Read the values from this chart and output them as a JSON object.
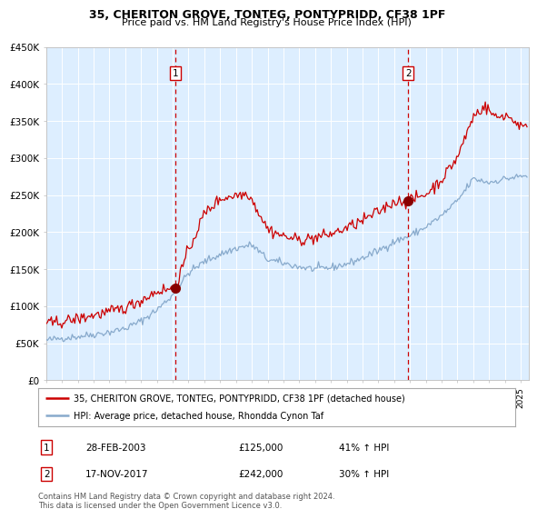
{
  "title": "35, CHERITON GROVE, TONTEG, PONTYPRIDD, CF38 1PF",
  "subtitle": "Price paid vs. HM Land Registry's House Price Index (HPI)",
  "ylim": [
    0,
    450000
  ],
  "yticks": [
    0,
    50000,
    100000,
    150000,
    200000,
    250000,
    300000,
    350000,
    400000,
    450000
  ],
  "ytick_labels": [
    "£0",
    "£50K",
    "£100K",
    "£150K",
    "£200K",
    "£250K",
    "£300K",
    "£350K",
    "£400K",
    "£450K"
  ],
  "xlim_start": 1995.0,
  "xlim_end": 2025.5,
  "plot_bg_color": "#ddeeff",
  "outer_bg_color": "#ffffff",
  "red_line_color": "#cc0000",
  "blue_line_color": "#88aacc",
  "marker_color": "#880000",
  "vline_color": "#cc0000",
  "transaction1_x": 2003.16,
  "transaction1_y": 125000,
  "transaction1_label": "1",
  "transaction2_x": 2017.88,
  "transaction2_y": 242000,
  "transaction2_label": "2",
  "legend_line1": "35, CHERITON GROVE, TONTEG, PONTYPRIDD, CF38 1PF (detached house)",
  "legend_line2": "HPI: Average price, detached house, Rhondda Cynon Taf",
  "table_row1_num": "1",
  "table_row1_date": "28-FEB-2003",
  "table_row1_price": "£125,000",
  "table_row1_hpi": "41% ↑ HPI",
  "table_row2_num": "2",
  "table_row2_date": "17-NOV-2017",
  "table_row2_price": "£242,000",
  "table_row2_hpi": "30% ↑ HPI",
  "footer": "Contains HM Land Registry data © Crown copyright and database right 2024.\nThis data is licensed under the Open Government Licence v3.0.",
  "title_fontsize": 9,
  "subtitle_fontsize": 8
}
